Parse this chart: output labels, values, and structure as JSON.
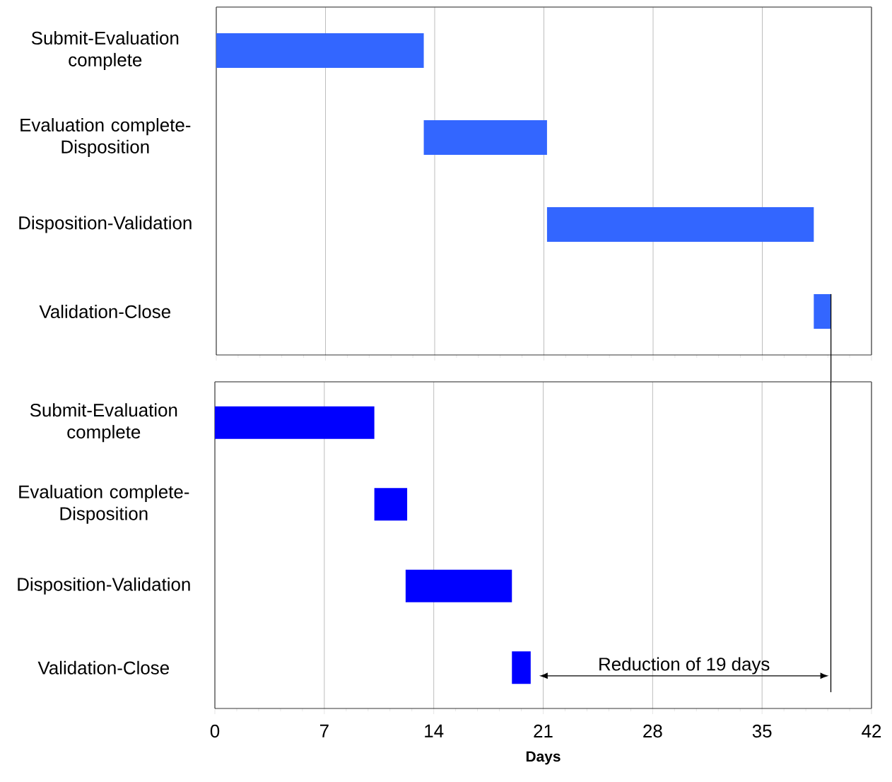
{
  "chart_data": [
    {
      "type": "bar",
      "orientation": "horizontal",
      "categories": [
        "Submit-Evaluation complete",
        "Evaluation complete-Disposition",
        "Disposition-Validation",
        "Validation-Close"
      ],
      "base": [
        0,
        13.3,
        21.2,
        38.3
      ],
      "values": [
        13.3,
        7.9,
        17.1,
        1.1
      ],
      "color": "#3366ff",
      "xlim": [
        0,
        42
      ],
      "xticks": [
        0,
        7,
        14,
        21,
        28,
        35,
        42
      ],
      "grid": "x",
      "tick_labels": "y",
      "ref_lines": [
        {
          "axis": "x",
          "value": 39.4
        }
      ]
    },
    {
      "type": "bar",
      "orientation": "horizontal",
      "categories": [
        "Submit-Evaluation complete",
        "Evaluation complete-Disposition",
        "Disposition-Validation",
        "Validation-Close"
      ],
      "base": [
        0,
        10.2,
        12.2,
        19.0
      ],
      "values": [
        10.2,
        2.1,
        6.8,
        1.2
      ],
      "color": "#0000ff",
      "xlim": [
        0,
        42
      ],
      "xticks": [
        0,
        7,
        14,
        21,
        28,
        35,
        42
      ],
      "grid": "x",
      "xlabel": "Days",
      "ref_lines": [
        {
          "axis": "x",
          "value": 39.4
        }
      ],
      "annotations": [
        "Reduction of 19 days"
      ]
    }
  ]
}
